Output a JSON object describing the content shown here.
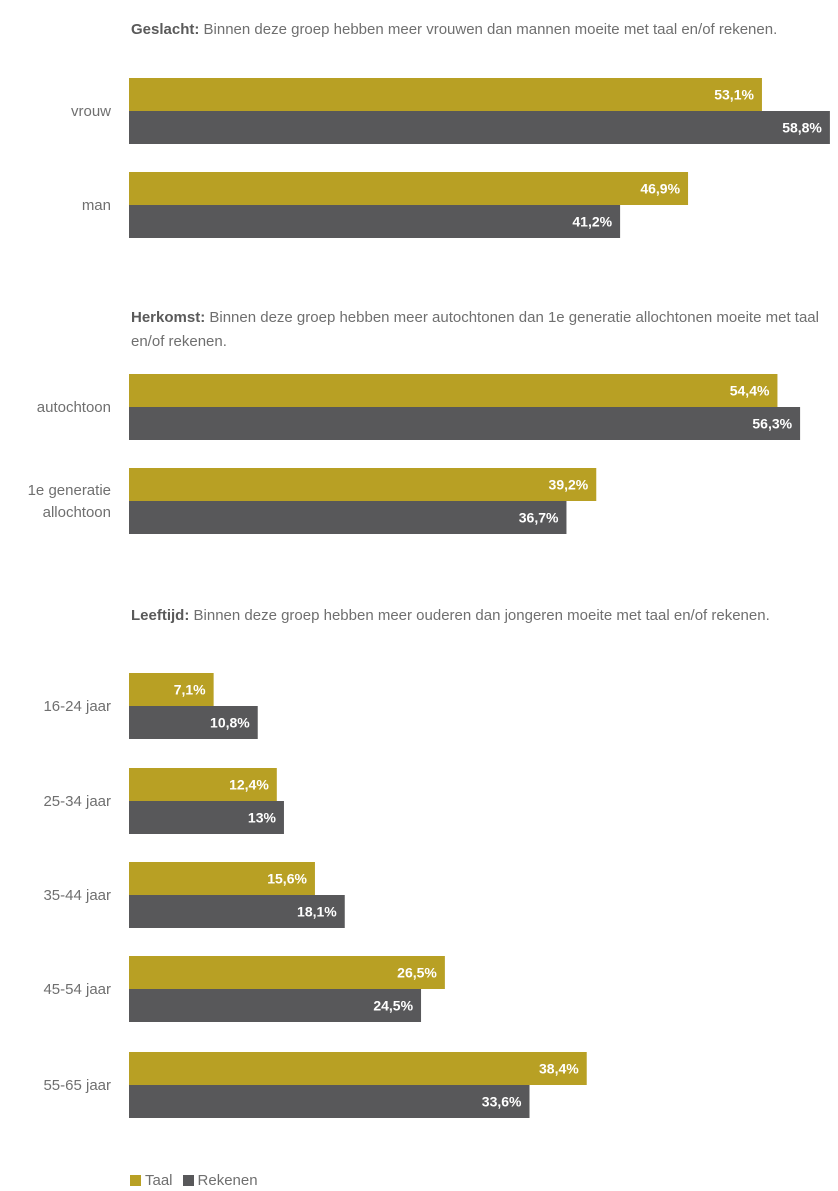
{
  "colors": {
    "taal": "#b8a024",
    "rekenen": "#58585a",
    "label_text": "#ffffff",
    "category_text": "#6f6f6f"
  },
  "legend": [
    {
      "key": "taal",
      "label": "Taal"
    },
    {
      "key": "rekenen",
      "label": "Rekenen"
    }
  ],
  "chart_data": [
    {
      "type": "bar",
      "orientation": "horizontal",
      "title_lead": "Geslacht:",
      "title_rest": "Binnen deze groep hebben meer vrouwen dan mannen moeite met taal en/of rekenen.",
      "categories": [
        [
          "vrouw"
        ],
        [
          "man"
        ]
      ],
      "series": [
        {
          "name": "Taal",
          "values": [
            53.1,
            46.9
          ],
          "labels": [
            "53,1%",
            "46,9%"
          ]
        },
        {
          "name": "Rekenen",
          "values": [
            58.8,
            41.2
          ],
          "labels": [
            "58,8%",
            "41,2%"
          ]
        }
      ]
    },
    {
      "type": "bar",
      "orientation": "horizontal",
      "title_lead": "Herkomst:",
      "title_rest": "Binnen deze groep hebben meer autochtonen dan 1e generatie allochtonen moeite met taal en/of rekenen.",
      "categories": [
        [
          "autochtoon"
        ],
        [
          "1e generatie",
          "allochtoon"
        ]
      ],
      "series": [
        {
          "name": "Taal",
          "values": [
            54.4,
            39.2
          ],
          "labels": [
            "54,4%",
            "39,2%"
          ]
        },
        {
          "name": "Rekenen",
          "values": [
            56.3,
            36.7
          ],
          "labels": [
            "56,3%",
            "36,7%"
          ]
        }
      ]
    },
    {
      "type": "bar",
      "orientation": "horizontal",
      "title_lead": "Leeftijd:",
      "title_rest": "Binnen deze groep hebben meer ouderen dan jongeren moeite met taal en/of rekenen.",
      "categories": [
        [
          "16-24 jaar"
        ],
        [
          "25-34 jaar"
        ],
        [
          "35-44 jaar"
        ],
        [
          "45-54 jaar"
        ],
        [
          "55-65 jaar"
        ]
      ],
      "series": [
        {
          "name": "Taal",
          "values": [
            7.1,
            12.4,
            15.6,
            26.5,
            38.4
          ],
          "labels": [
            "7,1%",
            "12,4%",
            "15,6%",
            "26,5%",
            "38,4%"
          ]
        },
        {
          "name": "Rekenen",
          "values": [
            10.8,
            13,
            18.1,
            24.5,
            33.6
          ],
          "labels": [
            "10,8%",
            "13%",
            "18,1%",
            "24,5%",
            "33,6%"
          ]
        }
      ]
    }
  ]
}
